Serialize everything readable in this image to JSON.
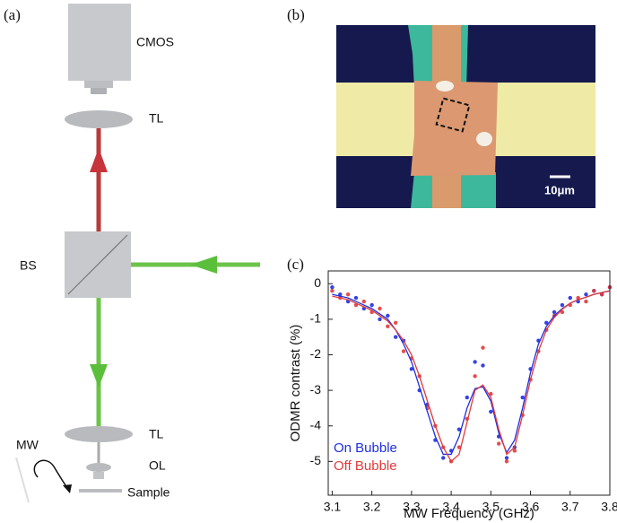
{
  "figure": {
    "panel_labels": [
      "(a)",
      "(b)",
      "(c)"
    ],
    "diagram": {
      "cmos": "CMOS",
      "tube_lens_top": "TL",
      "beam_splitter": "BS",
      "tube_lens_bottom": "TL",
      "microwave": "MW",
      "objective": "OL",
      "sample": "Sample"
    },
    "image": {
      "scale_bar": "10μm"
    }
  },
  "chart_data": {
    "type": "scatter",
    "x_label": "MW Frequency (GHz)",
    "y_label": "ODMR contrast (%)",
    "x": [
      3.1,
      3.12,
      3.14,
      3.16,
      3.18,
      3.2,
      3.22,
      3.24,
      3.26,
      3.28,
      3.3,
      3.32,
      3.34,
      3.36,
      3.38,
      3.4,
      3.42,
      3.44,
      3.46,
      3.48,
      3.5,
      3.52,
      3.54,
      3.56,
      3.58,
      3.6,
      3.62,
      3.64,
      3.66,
      3.68,
      3.7,
      3.72,
      3.74,
      3.76,
      3.78,
      3.8
    ],
    "series": [
      {
        "name": "On Bubble",
        "color": "#1f2fe0",
        "values": [
          -0.1,
          -0.3,
          -0.5,
          -0.4,
          -0.7,
          -0.6,
          -1.0,
          -0.9,
          -1.5,
          -1.6,
          -2.4,
          -3.0,
          -3.4,
          -4.4,
          -4.9,
          -4.7,
          -4.1,
          -3.2,
          -2.2,
          -2.3,
          -3.6,
          -4.3,
          -4.9,
          -4.6,
          -3.2,
          -2.4,
          -1.6,
          -1.1,
          -0.8,
          -0.6,
          -0.4,
          -0.5,
          -0.3,
          -0.2,
          -0.3,
          -0.1
        ],
        "fit": [
          -0.3,
          -0.35,
          -0.4,
          -0.5,
          -0.6,
          -0.7,
          -0.85,
          -1.0,
          -1.3,
          -1.7,
          -2.2,
          -2.9,
          -3.6,
          -4.3,
          -4.8,
          -4.8,
          -4.3,
          -3.5,
          -2.95,
          -2.9,
          -3.3,
          -4.2,
          -4.75,
          -4.4,
          -3.5,
          -2.5,
          -1.7,
          -1.2,
          -0.9,
          -0.7,
          -0.55,
          -0.45,
          -0.38,
          -0.3,
          -0.25,
          -0.2
        ]
      },
      {
        "name": "Off Bubble",
        "color": "#e23a3a",
        "values": [
          -0.2,
          -0.4,
          -0.3,
          -0.6,
          -0.5,
          -0.8,
          -0.7,
          -1.2,
          -1.1,
          -1.9,
          -2.1,
          -2.6,
          -3.5,
          -4.0,
          -4.6,
          -5.0,
          -4.6,
          -3.8,
          -2.6,
          -1.8,
          -3.1,
          -4.5,
          -5.0,
          -4.7,
          -3.7,
          -2.7,
          -1.9,
          -1.3,
          -0.9,
          -0.8,
          -0.6,
          -0.4,
          -0.5,
          -0.2,
          -0.3,
          -0.1
        ],
        "fit": [
          -0.35,
          -0.4,
          -0.45,
          -0.55,
          -0.65,
          -0.75,
          -0.9,
          -1.05,
          -1.3,
          -1.6,
          -2.0,
          -2.6,
          -3.3,
          -4.0,
          -4.6,
          -5.0,
          -4.8,
          -3.9,
          -3.0,
          -2.85,
          -3.2,
          -4.1,
          -4.8,
          -4.6,
          -3.7,
          -2.7,
          -1.9,
          -1.3,
          -0.95,
          -0.72,
          -0.55,
          -0.45,
          -0.38,
          -0.3,
          -0.25,
          -0.2
        ]
      }
    ],
    "xlim": [
      3.09,
      3.8
    ],
    "xticks": [
      3.1,
      3.2,
      3.3,
      3.4,
      3.5,
      3.6,
      3.7,
      3.8
    ],
    "ylim": [
      -5.95,
      0.36
    ],
    "yticks": [
      0,
      -1,
      -2,
      -3,
      -4,
      -5
    ],
    "legend": "lower-left"
  }
}
